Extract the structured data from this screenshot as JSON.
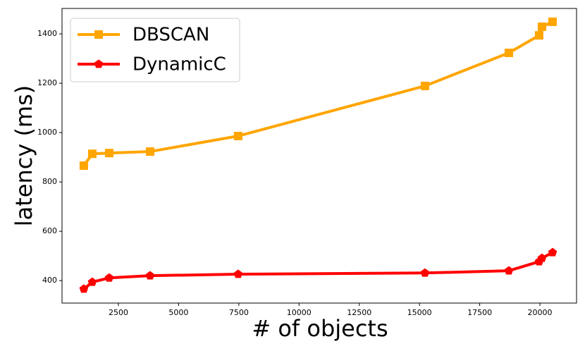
{
  "chart_data": {
    "type": "line",
    "x_label": "# of objects",
    "y_label": "latency (ms)",
    "x": [
      1065,
      1416,
      2119,
      3816,
      7472,
      15227,
      18710,
      19968,
      20085,
      20524
    ],
    "series": [
      {
        "name": "DBSCAN",
        "color": "#ffa500",
        "marker": "square",
        "values": [
          866,
          914,
          917,
          923,
          986,
          1189,
          1323,
          1394,
          1429,
          1449
        ]
      },
      {
        "name": "DynamicC",
        "color": "#ff0000",
        "marker": "pentagon",
        "values": [
          366,
          394,
          411,
          420,
          426,
          431,
          440,
          477,
          491,
          514
        ]
      }
    ],
    "xlim": [
      160,
      21520
    ],
    "ylim": [
      309,
      1503
    ],
    "xticks": [
      2500,
      5000,
      7500,
      10000,
      12500,
      15000,
      17500,
      20000
    ],
    "yticks": [
      400,
      600,
      800,
      1000,
      1200,
      1400
    ],
    "legend": "upper left",
    "grid": false
  }
}
